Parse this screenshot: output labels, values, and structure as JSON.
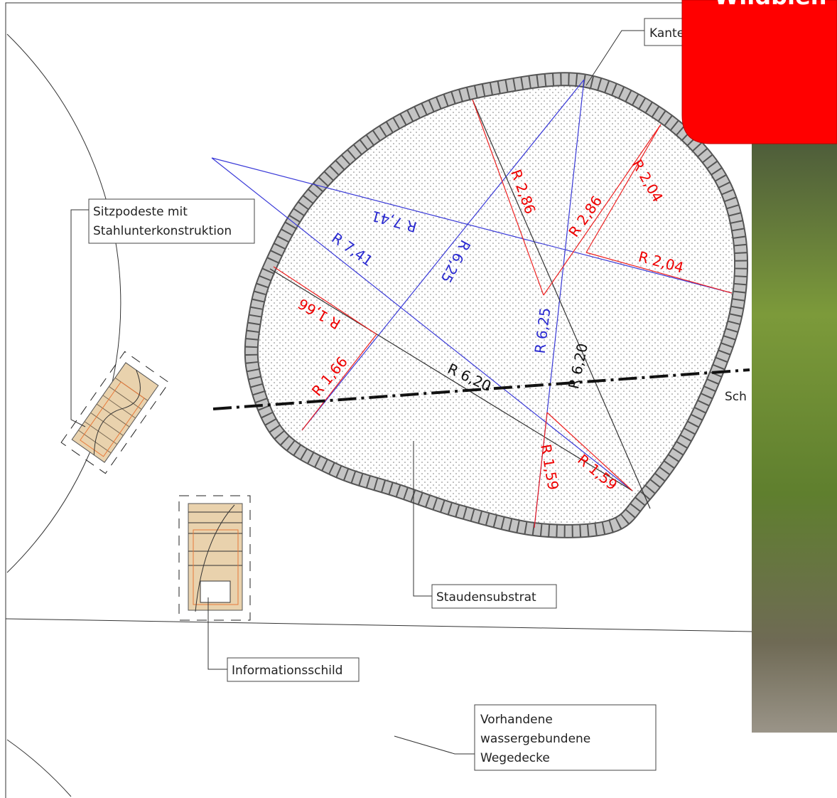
{
  "header": {
    "title": "Wildbien"
  },
  "labels": {
    "edge": "Kante",
    "seating": [
      "Sitzpodeste mit",
      "Stahlunterkonstruktion"
    ],
    "substrate": "Staudensubstrat",
    "sign": "Informationsschild",
    "path": [
      "Vorhandene",
      "wassergebundene",
      "Wegedecke"
    ],
    "section": "Sch"
  },
  "dimensions": [
    "R 7,41",
    "R 7,41",
    "R 6,25",
    "R 6,25",
    "R 6,20",
    "R 6,20",
    "R 2,86",
    "R 2,86",
    "R 2,04",
    "R 2,04",
    "R 1,66",
    "R 1,66",
    "R 1,59",
    "R 1,59"
  ]
}
